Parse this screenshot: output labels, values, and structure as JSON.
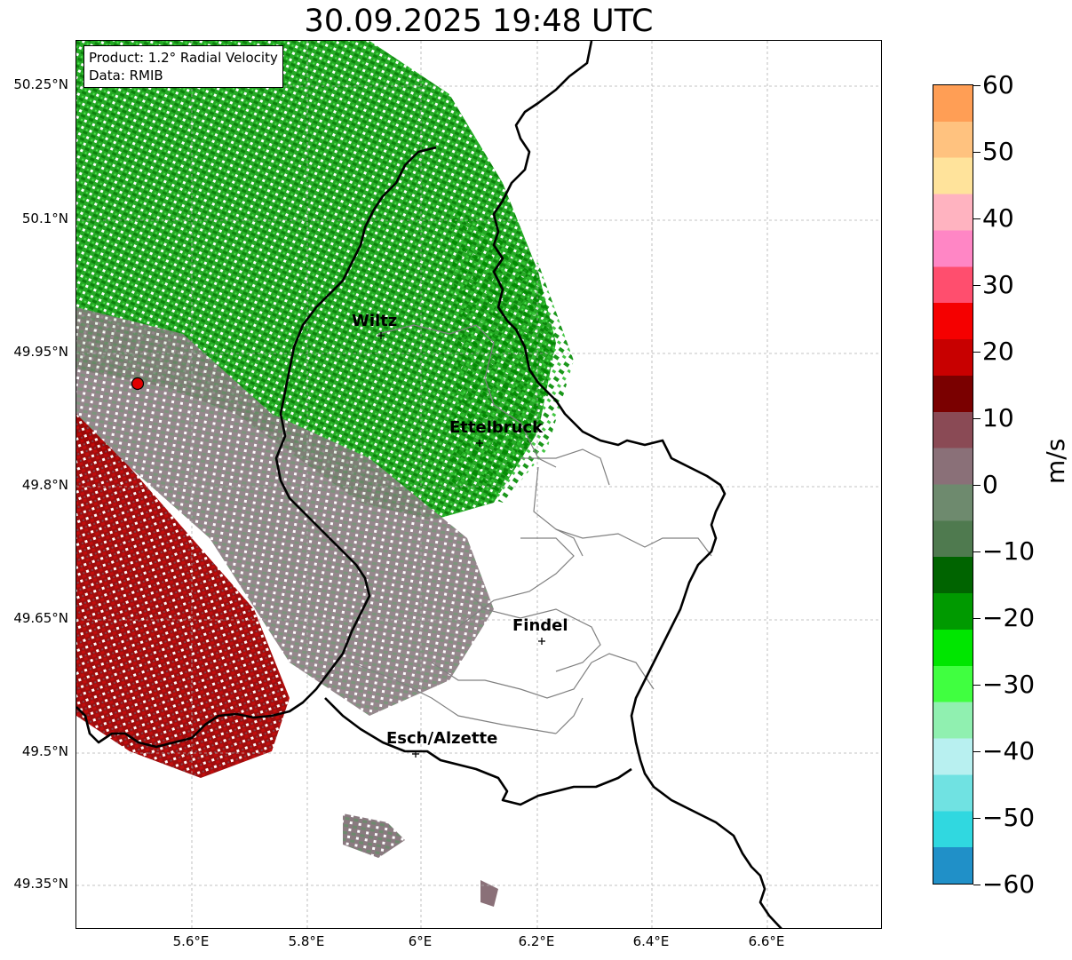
{
  "title": "30.09.2025 19:48 UTC",
  "info": {
    "product": "Product: 1.2° Radial Velocity",
    "source": "Data: RMIB"
  },
  "axes": {
    "lat_labels": [
      "50.25°N",
      "50.1°N",
      "49.95°N",
      "49.8°N",
      "49.65°N",
      "49.5°N",
      "49.35°N"
    ],
    "lon_labels": [
      "5.6°E",
      "5.8°E",
      "6°E",
      "6.2°E",
      "6.4°E",
      "6.6°E"
    ]
  },
  "cities": [
    {
      "name": "Wiltz"
    },
    {
      "name": "Ettelbruck"
    },
    {
      "name": "Findel"
    },
    {
      "name": "Esch/Alzette"
    }
  ],
  "radar": {
    "marker": "radar-site-icon",
    "color": "#e00000"
  },
  "colorbar": {
    "label": "m/s",
    "min": -60,
    "max": 60,
    "ticks": [
      "60",
      "50",
      "40",
      "30",
      "20",
      "10",
      "0",
      "−10",
      "−20",
      "−30",
      "−40",
      "−50",
      "−60"
    ],
    "gradient": [
      "#ff9e55",
      "#ffc27f",
      "#ffe39b",
      "#ffb3c0",
      "#ff86c5",
      "#ff4e6e",
      "#f50000",
      "#c80000",
      "#7a0000",
      "#8a4a55",
      "#8a7078",
      "#6e8a6e",
      "#4f7a4f",
      "#006400",
      "#009a00",
      "#00e600",
      "#40ff40",
      "#90f0b0",
      "#b8f0f0",
      "#70e2e2",
      "#30d8e0",
      "#2090c8"
    ]
  },
  "colors": {
    "approaching": "#00b000",
    "receding": "#b00000",
    "near_zero": "#8a7a80",
    "border": "#000000",
    "canton_border": "#808080"
  }
}
